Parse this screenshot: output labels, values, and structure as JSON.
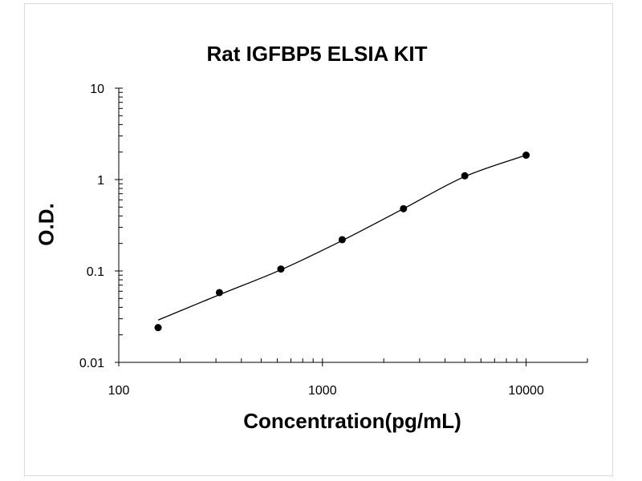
{
  "chart_data": {
    "type": "scatter",
    "title": "Rat IGFBP5 ELSIA KIT",
    "xlabel": "Concentration(pg/mL)",
    "ylabel": "O.D.",
    "x_scale": "log",
    "y_scale": "log",
    "xlim": [
      100,
      20000
    ],
    "ylim": [
      0.01,
      10
    ],
    "x_ticks": [
      {
        "value": 100,
        "label": "100"
      },
      {
        "value": 1000,
        "label": "1000"
      },
      {
        "value": 10000,
        "label": "10000"
      }
    ],
    "y_ticks": [
      {
        "value": 0.01,
        "label": "0.01"
      },
      {
        "value": 0.1,
        "label": "0.1"
      },
      {
        "value": 1,
        "label": "1"
      },
      {
        "value": 10,
        "label": "10"
      }
    ],
    "grid": false,
    "points": [
      {
        "x": 156,
        "y": 0.024
      },
      {
        "x": 312,
        "y": 0.058
      },
      {
        "x": 625,
        "y": 0.105
      },
      {
        "x": 1250,
        "y": 0.22
      },
      {
        "x": 2500,
        "y": 0.48
      },
      {
        "x": 5000,
        "y": 1.1
      },
      {
        "x": 10000,
        "y": 1.85
      }
    ],
    "fit_curve": [
      {
        "x": 156,
        "y": 0.029
      },
      {
        "x": 312,
        "y": 0.055
      },
      {
        "x": 625,
        "y": 0.103
      },
      {
        "x": 1250,
        "y": 0.215
      },
      {
        "x": 2500,
        "y": 0.48
      },
      {
        "x": 5000,
        "y": 1.08
      },
      {
        "x": 10000,
        "y": 1.85
      }
    ],
    "colors": {
      "points": "#000000",
      "curve": "#000000",
      "axes": "#000000"
    }
  }
}
